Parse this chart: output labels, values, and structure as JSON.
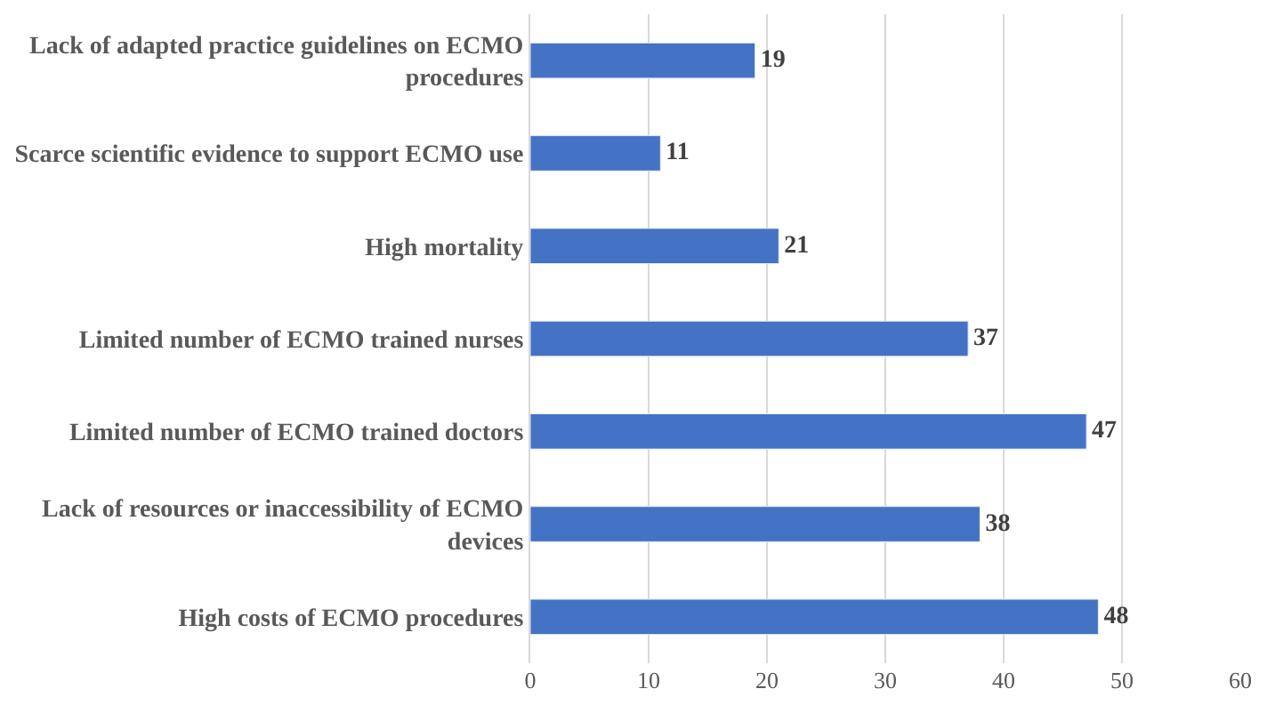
{
  "chart_data": {
    "type": "bar",
    "orientation": "horizontal",
    "categories": [
      "Lack of adapted practice guidelines on ECMO procedures",
      "Scarce scientific evidence to support ECMO use",
      "High mortality",
      "Limited number of ECMO trained nurses",
      "Limited number of ECMO trained doctors",
      "Lack of resources or inaccessibility of ECMO devices",
      "High costs of ECMO procedures"
    ],
    "values": [
      19,
      11,
      21,
      37,
      47,
      38,
      48
    ],
    "color": "#4472c4",
    "xlim": [
      0,
      60
    ],
    "xticks": [
      0,
      10,
      20,
      30,
      40,
      50,
      60
    ],
    "grid": "x",
    "data_labels": true
  }
}
